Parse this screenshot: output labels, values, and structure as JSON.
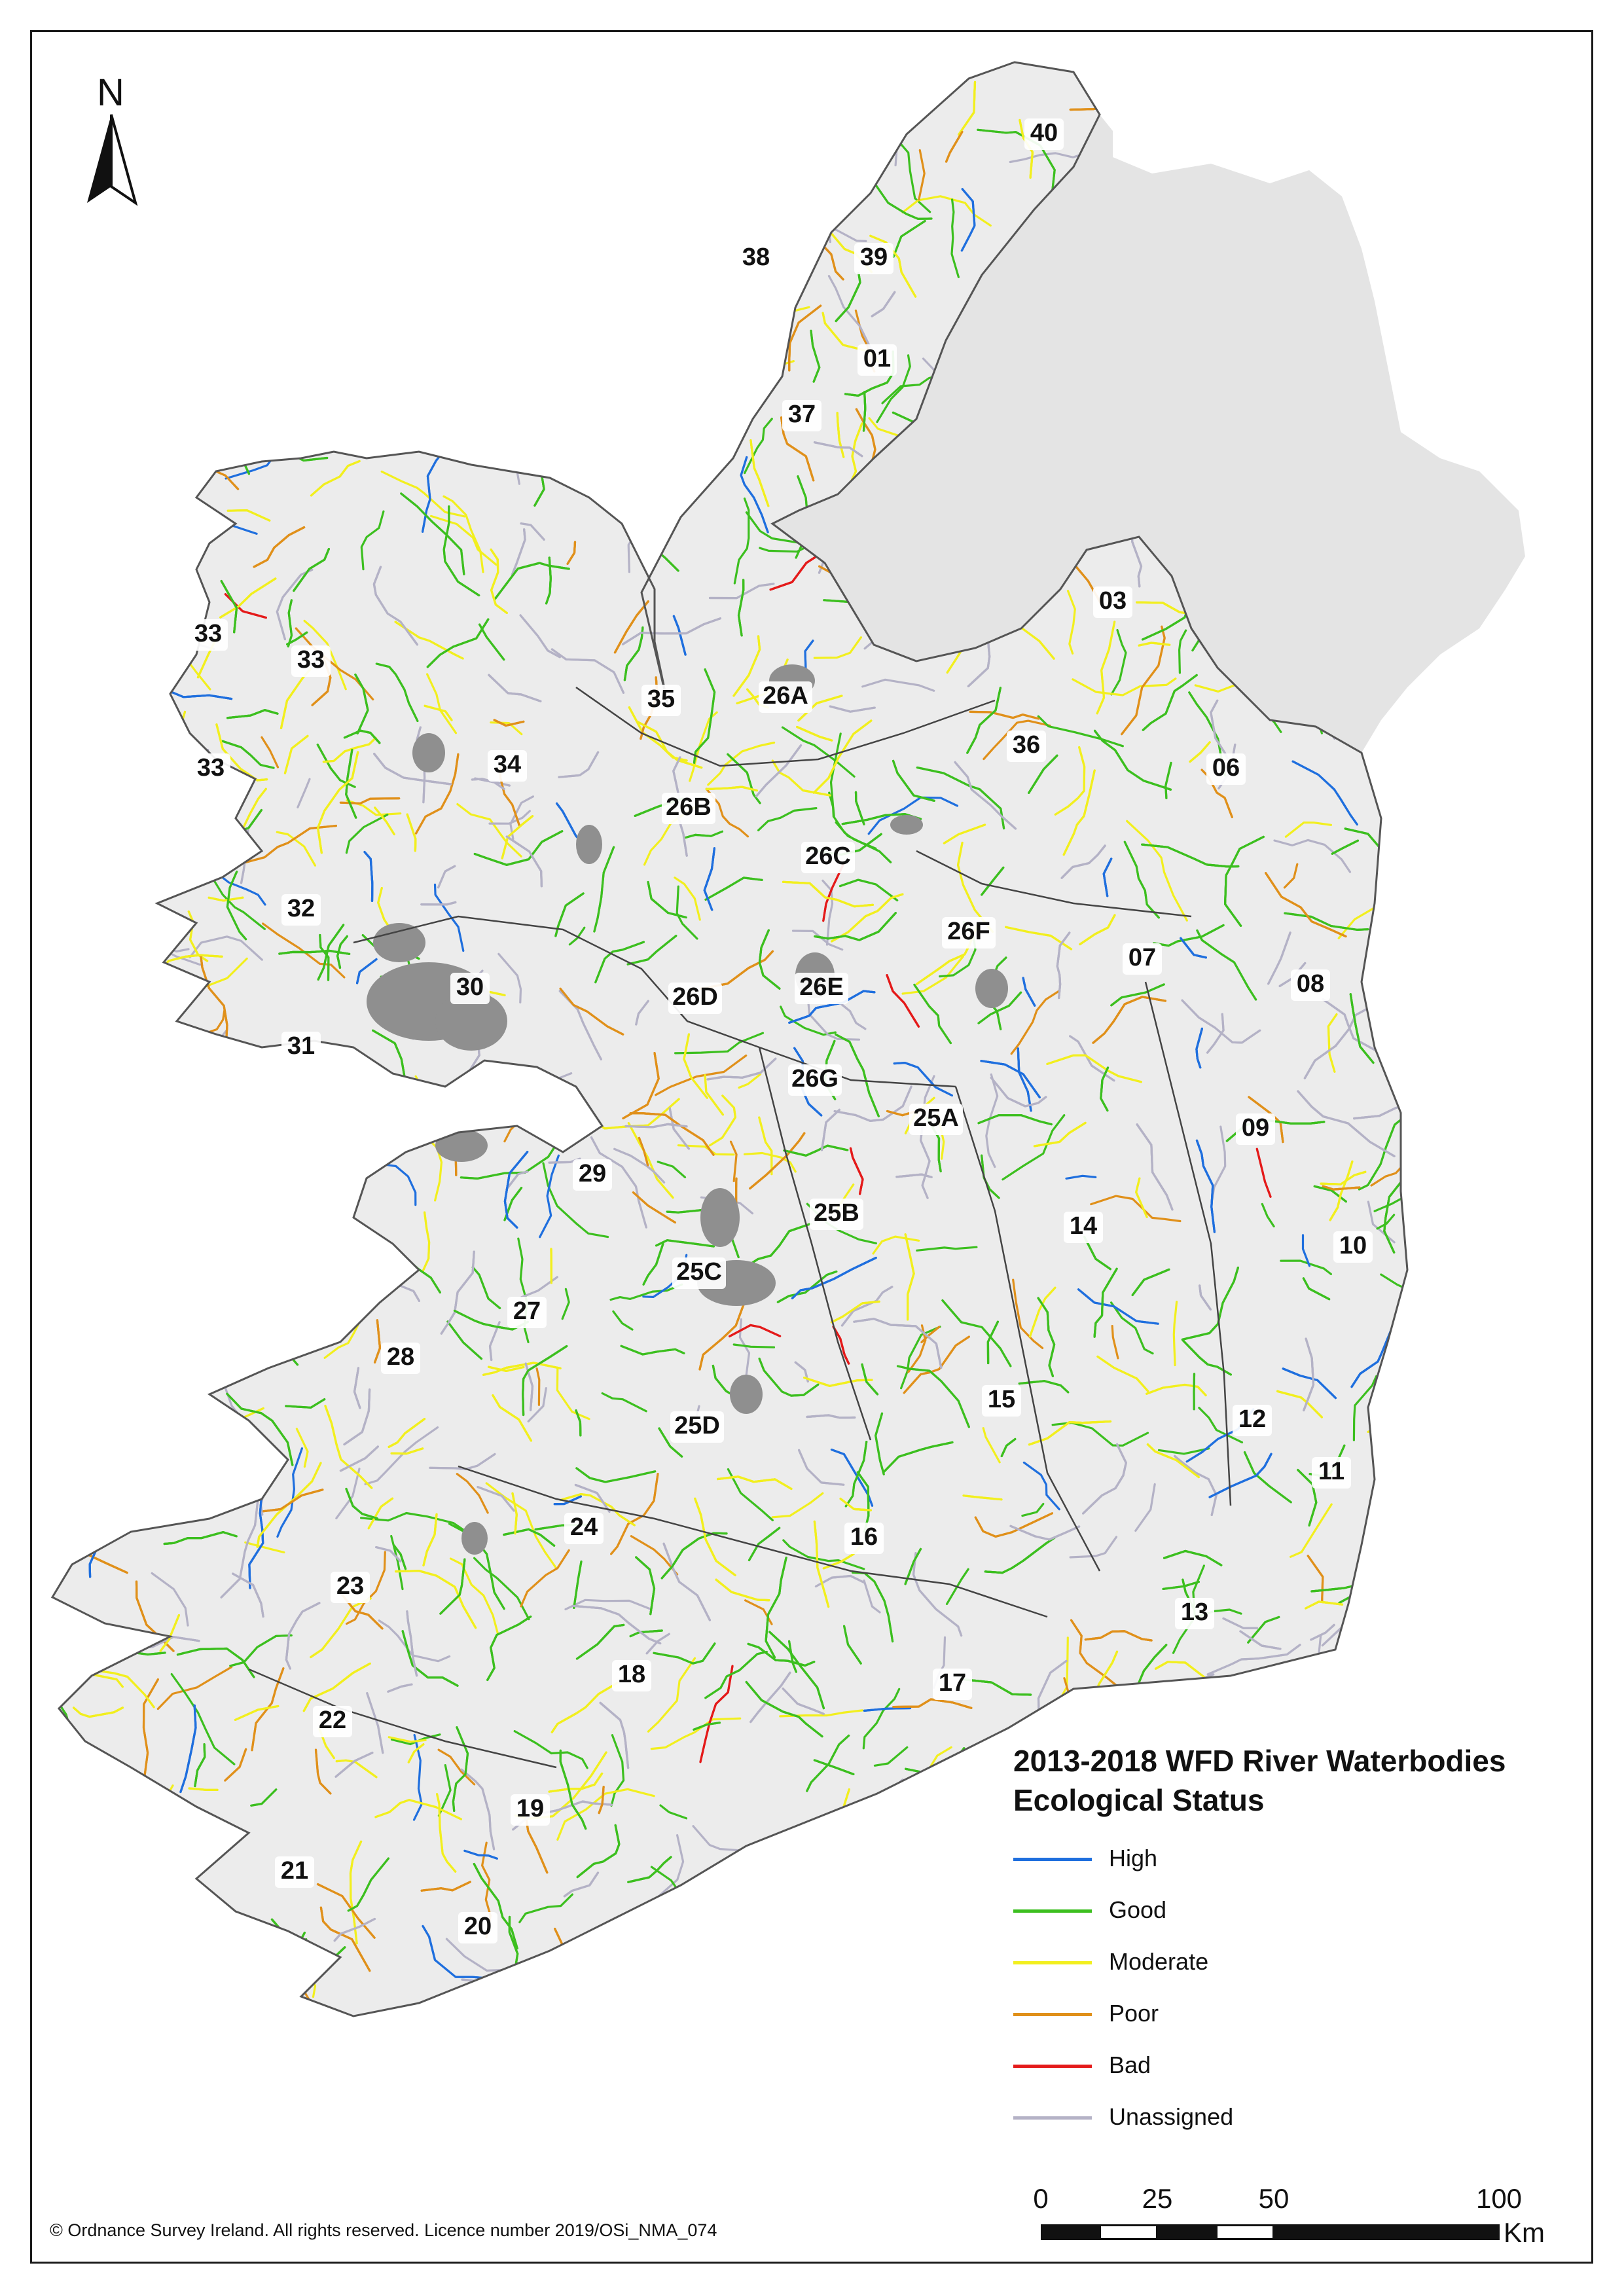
{
  "map": {
    "north_label": "N",
    "colors": {
      "background": "#ffffff",
      "land": "#ececec",
      "ni_land": "#e4e4e4",
      "lake": "#8f8f8f",
      "coast": "#555555",
      "catchment_boundary": "#444444"
    },
    "catchment_labels": [
      "40",
      "38",
      "39",
      "01",
      "37",
      "03",
      "33",
      "33",
      "35",
      "26A",
      "33",
      "34",
      "36",
      "06",
      "26B",
      "26C",
      "32",
      "26F",
      "07",
      "08",
      "30",
      "26D",
      "26E",
      "31",
      "26G",
      "25A",
      "09",
      "29",
      "25B",
      "14",
      "10",
      "25C",
      "27",
      "28",
      "15",
      "12",
      "25D",
      "11",
      "24",
      "16",
      "23",
      "13",
      "18",
      "17",
      "22",
      "19",
      "21",
      "20"
    ]
  },
  "legend": {
    "title_line1": "2013-2018 WFD River Waterbodies",
    "title_line2": "Ecological Status",
    "items": [
      {
        "label": "High",
        "color": "#1f6fde"
      },
      {
        "label": "Good",
        "color": "#3cbf1f"
      },
      {
        "label": "Moderate",
        "color": "#f2ef1e"
      },
      {
        "label": "Poor",
        "color": "#e0901a"
      },
      {
        "label": "Bad",
        "color": "#e41a1a"
      },
      {
        "label": "Unassigned",
        "color": "#b4b2c6"
      }
    ]
  },
  "scale_bar": {
    "ticks": [
      "0",
      "25",
      "50",
      "100"
    ],
    "unit": "Km"
  },
  "copyright": "© Ordnance Survey Ireland. All rights reserved. Licence number 2019/OSi_NMA_074"
}
